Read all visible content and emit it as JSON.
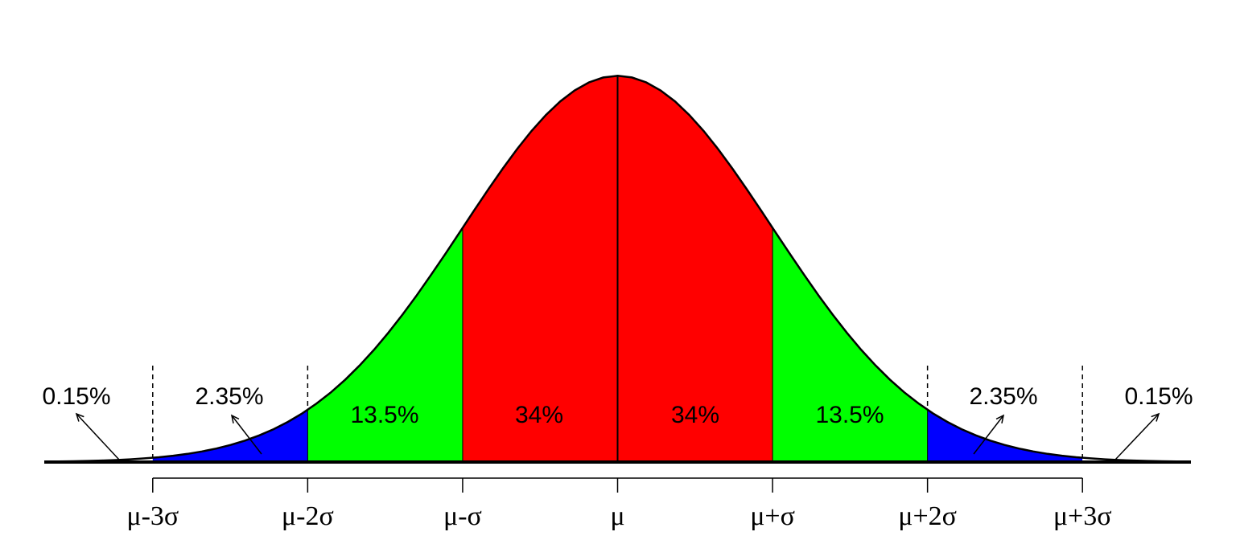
{
  "chart_data": {
    "type": "normal",
    "xlim": [
      -3.7,
      3.7
    ],
    "ylim": [
      0,
      0.41
    ],
    "xticks": [
      {
        "value": -3,
        "label": "μ-3σ"
      },
      {
        "value": -2,
        "label": "μ-2σ"
      },
      {
        "value": -1,
        "label": "μ-σ"
      },
      {
        "value": 0,
        "label": "μ"
      },
      {
        "value": 1,
        "label": "μ+σ"
      },
      {
        "value": 2,
        "label": "μ+2σ"
      },
      {
        "value": 3,
        "label": "μ+3σ"
      }
    ],
    "values": [
      0.15,
      2.35,
      13.5,
      34,
      34,
      13.5,
      2.35,
      0.15
    ],
    "value_labels": [
      "0.15%",
      "2.35%",
      "13.5%",
      "34%",
      "34%",
      "13.5%",
      "2.35%",
      "0.15%"
    ],
    "colors": [
      "#ffffff",
      "#0000ff",
      "#00ff00",
      "#ff0000",
      "#ff0000",
      "#00ff00",
      "#0000ff",
      "#ffffff"
    ]
  }
}
